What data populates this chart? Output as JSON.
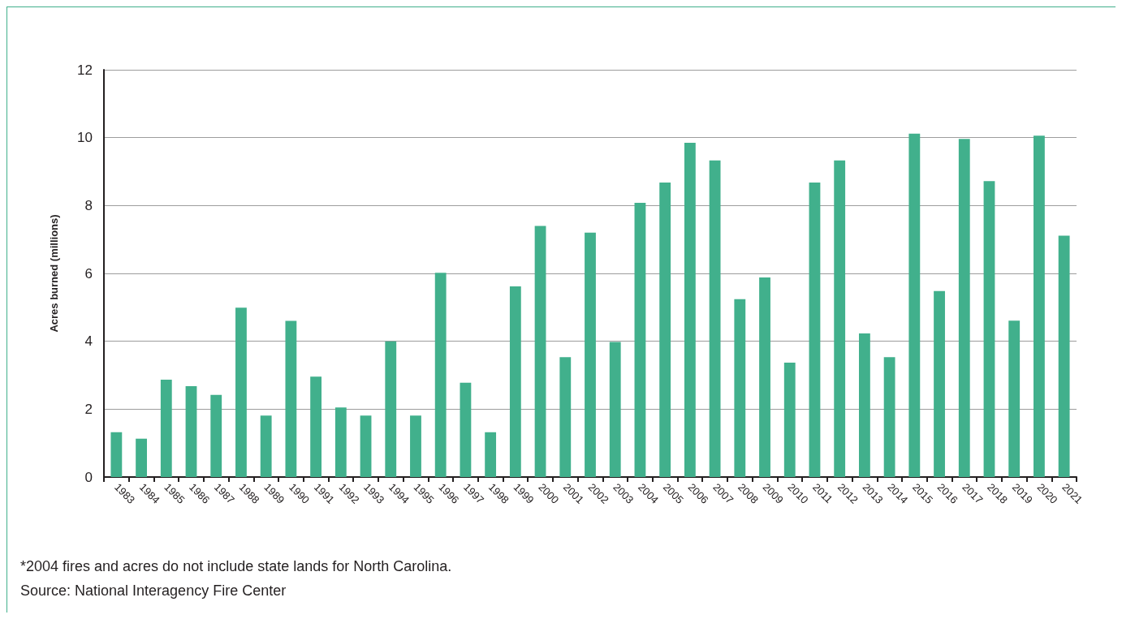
{
  "chart_data": {
    "type": "bar",
    "ylabel": "Acres burned (millions)",
    "categories": [
      "1983",
      "1984",
      "1985",
      "1986",
      "1987",
      "1988",
      "1989",
      "1990",
      "1991",
      "1992",
      "1993",
      "1994",
      "1995",
      "1996",
      "1997",
      "1998",
      "1999",
      "2000",
      "2001",
      "2002",
      "2003",
      "2004",
      "2005",
      "2006",
      "2007",
      "2008",
      "2009",
      "2010",
      "2011",
      "2012",
      "2013",
      "2014",
      "2015",
      "2016",
      "2017",
      "2018",
      "2019",
      "2020",
      "2021"
    ],
    "values": [
      1.32,
      1.13,
      2.87,
      2.68,
      2.42,
      4.99,
      1.81,
      4.6,
      2.96,
      2.05,
      1.81,
      4.0,
      1.81,
      6.02,
      2.78,
      1.32,
      5.62,
      7.4,
      3.53,
      7.2,
      3.98,
      8.08,
      8.68,
      9.85,
      9.33,
      5.24,
      5.88,
      3.37,
      8.68,
      9.33,
      4.23,
      3.53,
      10.12,
      5.48,
      9.96,
      8.72,
      4.61,
      10.06,
      7.11
    ],
    "color": "#41b08c",
    "ylim": [
      0,
      12
    ],
    "yticks": [
      0,
      2,
      4,
      6,
      8,
      10,
      12
    ],
    "grid": "y",
    "annotations": [
      "*2004 fires and acres do not include state lands for North Carolina.",
      "Source: National Interagency Fire Center"
    ]
  }
}
